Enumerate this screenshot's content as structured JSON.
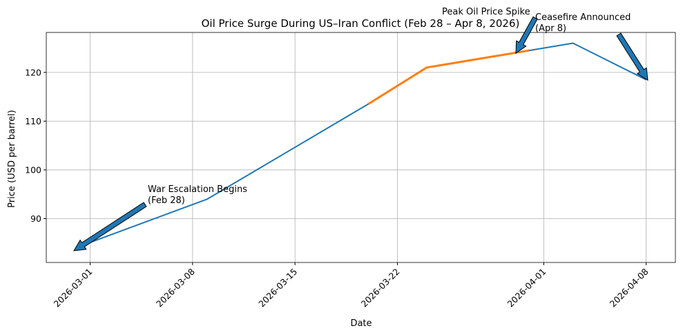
{
  "chart_data": {
    "type": "line",
    "title": "Oil Price Surge During US–Iran Conflict (Feb 28 – Apr 8, 2026)",
    "x_label": "Date",
    "y_label": "Price (USD per barrel)",
    "x": [
      "2026-02-28",
      "2026-03-09",
      "2026-03-20",
      "2026-03-24",
      "2026-03-30",
      "2026-03-31",
      "2026-04-03",
      "2026-04-08"
    ],
    "series": [
      {
        "color": "#1f77b4",
        "values": [
          84,
          94,
          113.5,
          121,
          124,
          124.5,
          126,
          118.5
        ]
      },
      {
        "color": "#ff7f0e",
        "values": [
          null,
          null,
          113.5,
          121,
          124,
          124.5,
          null,
          null
        ]
      }
    ],
    "xlim": [
      "2026-02-26",
      "2026-04-10"
    ],
    "xticks": [
      "2026-03-01",
      "2026-03-08",
      "2026-03-15",
      "2026-03-22",
      "2026-04-01",
      "2026-04-08"
    ],
    "ylim": [
      81,
      128.2
    ],
    "yticks": [
      90,
      100,
      110,
      120
    ],
    "grid": true,
    "annotations": [
      {
        "text": [
          "War Escalation Begins",
          "(Feb 28)"
        ]
      },
      {
        "text": [
          "Peak Oil Price Spike"
        ]
      },
      {
        "text": [
          "Ceasefire Announced",
          "(Apr 8)"
        ]
      }
    ]
  }
}
